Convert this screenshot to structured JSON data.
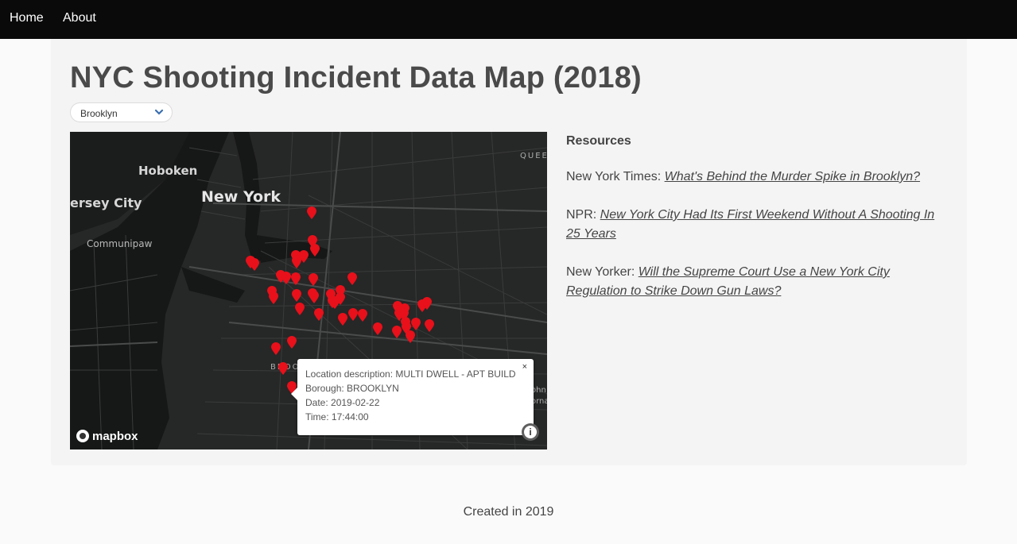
{
  "nav": {
    "home": "Home",
    "about": "About"
  },
  "page": {
    "title": "NYC Shooting Incident Data Map (2018)"
  },
  "borough_select": {
    "value": "Brooklyn"
  },
  "map": {
    "labels": {
      "hoboken": "Hoboken",
      "new_york": "New York",
      "jersey_city": "ersey City",
      "communipaw": "Communipaw",
      "queens": "QUEE",
      "brooklyn": "BROO",
      "johnston": "ohn",
      "ornament": "orna"
    },
    "marker_color": "#e8101a",
    "attribution": "mapbox",
    "popup": {
      "close": "×",
      "location": "Location description: MULTI DWELL - APT BUILD",
      "borough": "Borough: BROOKLYN",
      "date": "Date: 2019-02-22",
      "time": "Time: 17:44:00"
    }
  },
  "resources": {
    "heading": "Resources",
    "items": [
      {
        "source": "New York Times: ",
        "title": "What's Behind the Murder Spike in Brooklyn?"
      },
      {
        "source": "NPR: ",
        "title": "New York City Had Its First Weekend Without A Shooting In 25 Years"
      },
      {
        "source": "New Yorker: ",
        "title": "Will the Supreme Court Use a New York City Regulation to Strike Down Gun Laws?"
      }
    ]
  },
  "footer": {
    "text": "Created in 2019"
  }
}
